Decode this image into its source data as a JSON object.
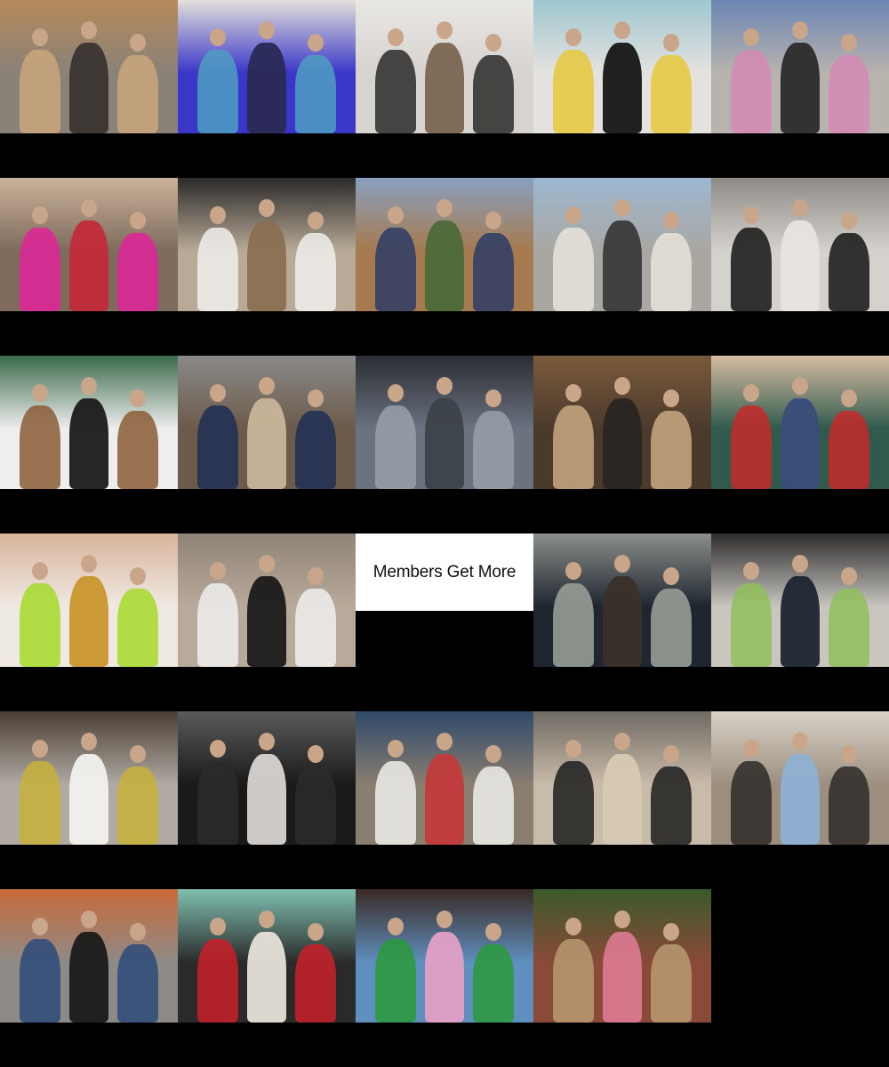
{
  "promo": {
    "label": "Members Get More"
  },
  "tiles": [
    {
      "name": "street-style-paris-group",
      "colors": [
        "#8a8278",
        "#c9a77c",
        "#3a3430",
        "#b58a5a"
      ]
    },
    {
      "name": "runway-models-blue-backdrop",
      "colors": [
        "#3a36c8",
        "#4f9ec2",
        "#2a2a55",
        "#e3e0dc"
      ]
    },
    {
      "name": "runway-menswear-oversized-coats",
      "colors": [
        "#d7d3cf",
        "#2a2a2a",
        "#7b6552",
        "#e9e7e4"
      ]
    },
    {
      "name": "models-floral-sweaters",
      "colors": [
        "#e4e2df",
        "#e7c83c",
        "#161616",
        "#9fc7cf"
      ]
    },
    {
      "name": "street-style-denim-leather",
      "colors": [
        "#b9b3ae",
        "#d58ab4",
        "#2b2b2b",
        "#6a86b3"
      ]
    },
    {
      "name": "street-style-bright-pink-suit",
      "colors": [
        "#7e6b5c",
        "#e0239a",
        "#c12a3a",
        "#c9b29a"
      ]
    },
    {
      "name": "street-style-white-skirt-coats",
      "colors": [
        "#b8aa96",
        "#f0efec",
        "#8b6f52",
        "#2b2a2a"
      ]
    },
    {
      "name": "street-style-denim-wide-flares",
      "colors": [
        "#a57a4e",
        "#2d3c66",
        "#4d6a39",
        "#8aa0bf"
      ]
    },
    {
      "name": "street-style-crosswalk-shopping-bag",
      "colors": [
        "#a9a7a2",
        "#e9e4dc",
        "#3b3a3a",
        "#9db7d0"
      ]
    },
    {
      "name": "street-style-black-pencil-skirt",
      "colors": [
        "#d5d2ce",
        "#151515",
        "#e7e4e0",
        "#8f8c88"
      ]
    },
    {
      "name": "street-style-snow-fur-coat",
      "colors": [
        "#eeeeee",
        "#8a5c36",
        "#1a1a1a",
        "#3a6a4a"
      ]
    },
    {
      "name": "street-style-crowd-straw-bag",
      "colors": [
        "#6c5a4a",
        "#1f2e55",
        "#c9b59a",
        "#8a8a8a"
      ]
    },
    {
      "name": "event-grey-kilt-suit",
      "colors": [
        "#6b7280",
        "#9aa0a8",
        "#3d424a",
        "#2a2d33"
      ]
    },
    {
      "name": "street-style-camel-suit",
      "colors": [
        "#4a3a2c",
        "#c9a983",
        "#2a2522",
        "#7b5a3c"
      ]
    },
    {
      "name": "event-red-sequin-bralette",
      "colors": [
        "#2f5a4c",
        "#c42a2a",
        "#3a4d7a",
        "#d7bca3"
      ]
    },
    {
      "name": "jewelry-gold-chain-lime-top",
      "colors": [
        "#efe9e3",
        "#a6d92a",
        "#c9962c",
        "#d8b49a"
      ]
    },
    {
      "name": "street-style-sheer-white-dress",
      "colors": [
        "#b9a99a",
        "#efefef",
        "#1a1a1a",
        "#8f8478"
      ]
    },
    {
      "name": "street-style-grey-suit-sunny",
      "colors": [
        "#1f2630",
        "#9ea39a",
        "#3b3029",
        "#8b8f8a"
      ]
    },
    {
      "name": "street-style-masked-pair-green-wall",
      "colors": [
        "#c9c6c0",
        "#8fbf5a",
        "#1e2530",
        "#2c2c2c"
      ]
    },
    {
      "name": "street-style-plaid-skirt-white-gown",
      "colors": [
        "#b0aaa3",
        "#c8b13a",
        "#f2f1ee",
        "#4a3e33"
      ]
    },
    {
      "name": "street-style-black-suit-tie",
      "colors": [
        "#1a1a1a",
        "#2b2b2b",
        "#d7d4d1",
        "#5a5a5a"
      ]
    },
    {
      "name": "street-style-white-suit-beret",
      "colors": [
        "#8a7e70",
        "#eeeeea",
        "#c23a3a",
        "#2f4a6a"
      ]
    },
    {
      "name": "street-style-black-coat-backpack",
      "colors": [
        "#c9bba9",
        "#1d1d1d",
        "#d7c9b3",
        "#6f6a63"
      ]
    },
    {
      "name": "street-style-blazer-flared-jeans",
      "colors": [
        "#9c8f80",
        "#2e2a27",
        "#8fb0d3",
        "#d8d1c6"
      ]
    },
    {
      "name": "street-style-beanie-blue-backpack",
      "colors": [
        "#8e8a86",
        "#2c4a7a",
        "#1a1a1a",
        "#c96a3a"
      ]
    },
    {
      "name": "red-carpet-three-gowns",
      "colors": [
        "#2a2a2a",
        "#c9202a",
        "#e7e2d8",
        "#7fbfb0"
      ]
    },
    {
      "name": "festival-colorful-knits",
      "colors": [
        "#5f8fbf",
        "#2a9a3a",
        "#e2a0c6",
        "#3a2a24"
      ]
    },
    {
      "name": "brick-wall-cardigan-plaid",
      "colors": [
        "#8a4a38",
        "#b99a72",
        "#d9788f",
        "#3a5a2a"
      ]
    }
  ]
}
